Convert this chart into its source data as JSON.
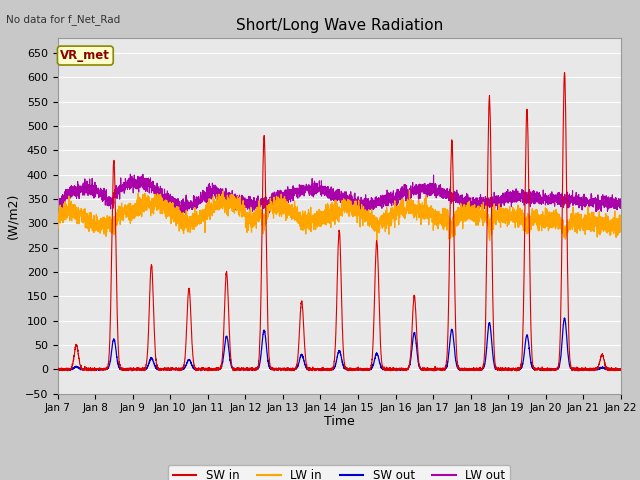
{
  "title": "Short/Long Wave Radiation",
  "xlabel": "Time",
  "ylabel": "(W/m2)",
  "top_left_text": "No data for f_Net_Rad",
  "box_label": "VR_met",
  "ylim": [
    -50,
    680
  ],
  "yticks": [
    -50,
    0,
    50,
    100,
    150,
    200,
    250,
    300,
    350,
    400,
    450,
    500,
    550,
    600,
    650
  ],
  "colors": {
    "SW_in": "#dd0000",
    "LW_in": "#ffa500",
    "SW_out": "#0000cc",
    "LW_out": "#aa00aa"
  },
  "fig_bg": "#c8c8c8",
  "plot_bg": "#e8e8e8",
  "grid_color": "#ffffff"
}
